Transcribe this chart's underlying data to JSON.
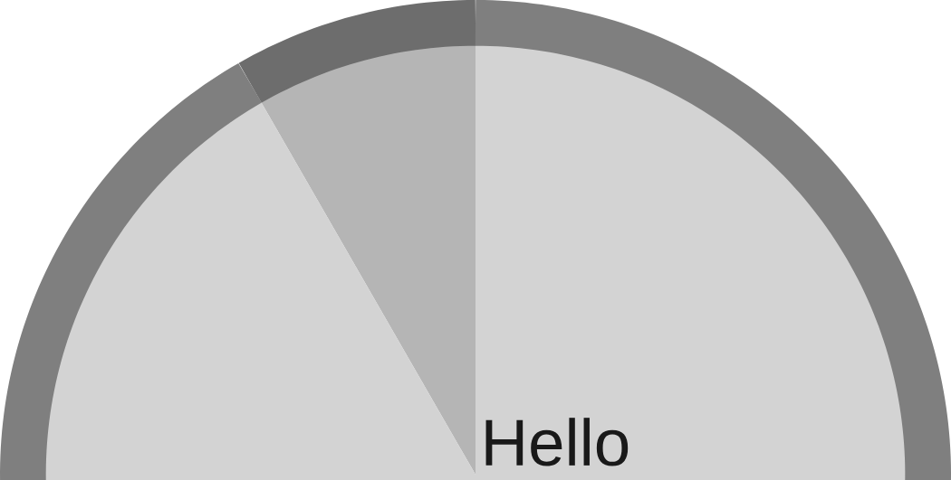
{
  "chart_data": {
    "type": "pie",
    "categories": [
      null,
      null
    ],
    "values": [
      8.3,
      91.7
    ],
    "colors": [
      "#b5b5b5",
      "#d3d3d3"
    ],
    "annotations": [
      "Hello"
    ]
  }
}
